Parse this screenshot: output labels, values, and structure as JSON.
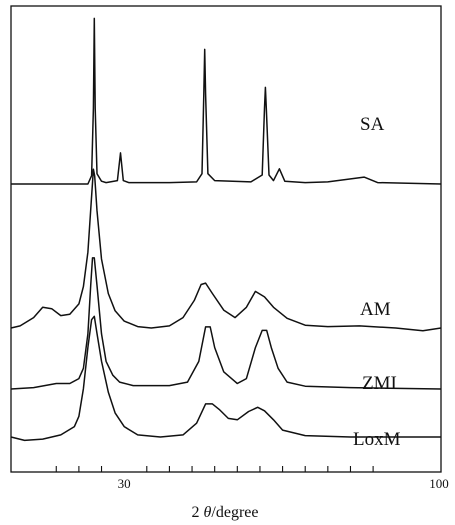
{
  "chart_data": {
    "type": "line",
    "title": "",
    "xlabel_prefix": "2",
    "xlabel_symbol": "θ",
    "xlabel_suffix": "/degree",
    "ylabel": "",
    "xlim": [
      5,
      100
    ],
    "x_tick_labels": [
      {
        "value": 30,
        "label": "30"
      },
      {
        "value": 100,
        "label": "100"
      }
    ],
    "minor_ticks": [
      15,
      20,
      25,
      35,
      40,
      45,
      50,
      55,
      60,
      65,
      70,
      75,
      80,
      85
    ],
    "grid": false,
    "series": [
      {
        "name": "SA",
        "baseline": 0,
        "points": [
          [
            5,
            0
          ],
          [
            20,
            0
          ],
          [
            22,
            0
          ],
          [
            22.8,
            1.2
          ],
          [
            23.2,
            11
          ],
          [
            23.4,
            24
          ],
          [
            23.6,
            11
          ],
          [
            24,
            1.5
          ],
          [
            25,
            0.4
          ],
          [
            26,
            0.2
          ],
          [
            28.5,
            0.5
          ],
          [
            29.2,
            4.5
          ],
          [
            29.8,
            0.5
          ],
          [
            31,
            0.2
          ],
          [
            40,
            0.2
          ],
          [
            46,
            0.3
          ],
          [
            47.2,
            1.5
          ],
          [
            47.6,
            13
          ],
          [
            47.8,
            19.5
          ],
          [
            48,
            13
          ],
          [
            48.5,
            1.5
          ],
          [
            50,
            0.5
          ],
          [
            58,
            0.3
          ],
          [
            60.5,
            1.3
          ],
          [
            61,
            11
          ],
          [
            61.2,
            14
          ],
          [
            61.4,
            11
          ],
          [
            62,
            1.3
          ],
          [
            63,
            0.5
          ],
          [
            64.3,
            2.2
          ],
          [
            65.5,
            0.4
          ],
          [
            70,
            0.2
          ],
          [
            75,
            0.3
          ],
          [
            83,
            1
          ],
          [
            86,
            0.2
          ],
          [
            100,
            0
          ]
        ]
      },
      {
        "name": "AM",
        "baseline": 0,
        "points": [
          [
            5,
            0
          ],
          [
            7,
            0.3
          ],
          [
            10,
            1.5
          ],
          [
            12,
            3
          ],
          [
            14,
            2.8
          ],
          [
            16,
            1.8
          ],
          [
            18,
            2
          ],
          [
            20,
            3.5
          ],
          [
            21,
            6
          ],
          [
            22,
            11
          ],
          [
            22.7,
            18
          ],
          [
            23.2,
            23
          ],
          [
            23.5,
            22
          ],
          [
            24,
            17
          ],
          [
            25,
            10
          ],
          [
            26.5,
            5
          ],
          [
            28,
            2.5
          ],
          [
            30,
            1
          ],
          [
            33,
            0.2
          ],
          [
            36,
            0
          ],
          [
            40,
            0.3
          ],
          [
            43,
            1.5
          ],
          [
            45.5,
            4
          ],
          [
            47,
            6.3
          ],
          [
            48,
            6.5
          ],
          [
            49.5,
            5
          ],
          [
            52,
            2.6
          ],
          [
            54.5,
            1.5
          ],
          [
            57,
            3
          ],
          [
            59,
            5.3
          ],
          [
            61,
            4.5
          ],
          [
            63,
            3
          ],
          [
            66,
            1.4
          ],
          [
            70,
            0.4
          ],
          [
            75,
            0.2
          ],
          [
            82,
            0.3
          ],
          [
            90,
            0
          ],
          [
            96,
            -0.4
          ],
          [
            100,
            0
          ]
        ]
      },
      {
        "name": "ZMI",
        "baseline": 0,
        "points": [
          [
            5,
            0
          ],
          [
            10,
            0.2
          ],
          [
            15,
            0.8
          ],
          [
            18,
            0.8
          ],
          [
            20,
            1.5
          ],
          [
            21,
            3
          ],
          [
            22,
            8
          ],
          [
            22.6,
            15
          ],
          [
            23,
            19
          ],
          [
            23.4,
            19
          ],
          [
            24,
            15
          ],
          [
            25,
            8
          ],
          [
            26,
            4
          ],
          [
            27.5,
            2
          ],
          [
            29,
            1
          ],
          [
            32,
            0.5
          ],
          [
            36,
            0.5
          ],
          [
            40,
            0.5
          ],
          [
            44,
            1
          ],
          [
            46.5,
            4
          ],
          [
            48,
            9
          ],
          [
            49,
            9
          ],
          [
            50,
            6
          ],
          [
            52,
            2.5
          ],
          [
            55,
            0.8
          ],
          [
            57,
            1.5
          ],
          [
            59,
            6
          ],
          [
            60.5,
            8.5
          ],
          [
            61.5,
            8.5
          ],
          [
            62.5,
            6
          ],
          [
            64,
            3
          ],
          [
            66,
            1
          ],
          [
            70,
            0.4
          ],
          [
            80,
            0.2
          ],
          [
            100,
            0
          ]
        ]
      },
      {
        "name": "LoxM",
        "baseline": 0,
        "points": [
          [
            5,
            0
          ],
          [
            8,
            -0.5
          ],
          [
            12,
            -0.3
          ],
          [
            16,
            0.3
          ],
          [
            19,
            1.5
          ],
          [
            20,
            3
          ],
          [
            21,
            7
          ],
          [
            22,
            13
          ],
          [
            22.8,
            17
          ],
          [
            23.4,
            17.5
          ],
          [
            24,
            15
          ],
          [
            25,
            11
          ],
          [
            26.5,
            6.5
          ],
          [
            28,
            3.5
          ],
          [
            30,
            1.5
          ],
          [
            33,
            0.3
          ],
          [
            38,
            0
          ],
          [
            43,
            0.3
          ],
          [
            46,
            2
          ],
          [
            48,
            4.8
          ],
          [
            49.5,
            4.8
          ],
          [
            51,
            4
          ],
          [
            53,
            2.7
          ],
          [
            55,
            2.5
          ],
          [
            57.5,
            3.7
          ],
          [
            59.5,
            4.3
          ],
          [
            61,
            3.8
          ],
          [
            63,
            2.5
          ],
          [
            65,
            1
          ],
          [
            70,
            0.2
          ],
          [
            80,
            0
          ],
          [
            90,
            0
          ],
          [
            100,
            0
          ]
        ]
      }
    ]
  }
}
